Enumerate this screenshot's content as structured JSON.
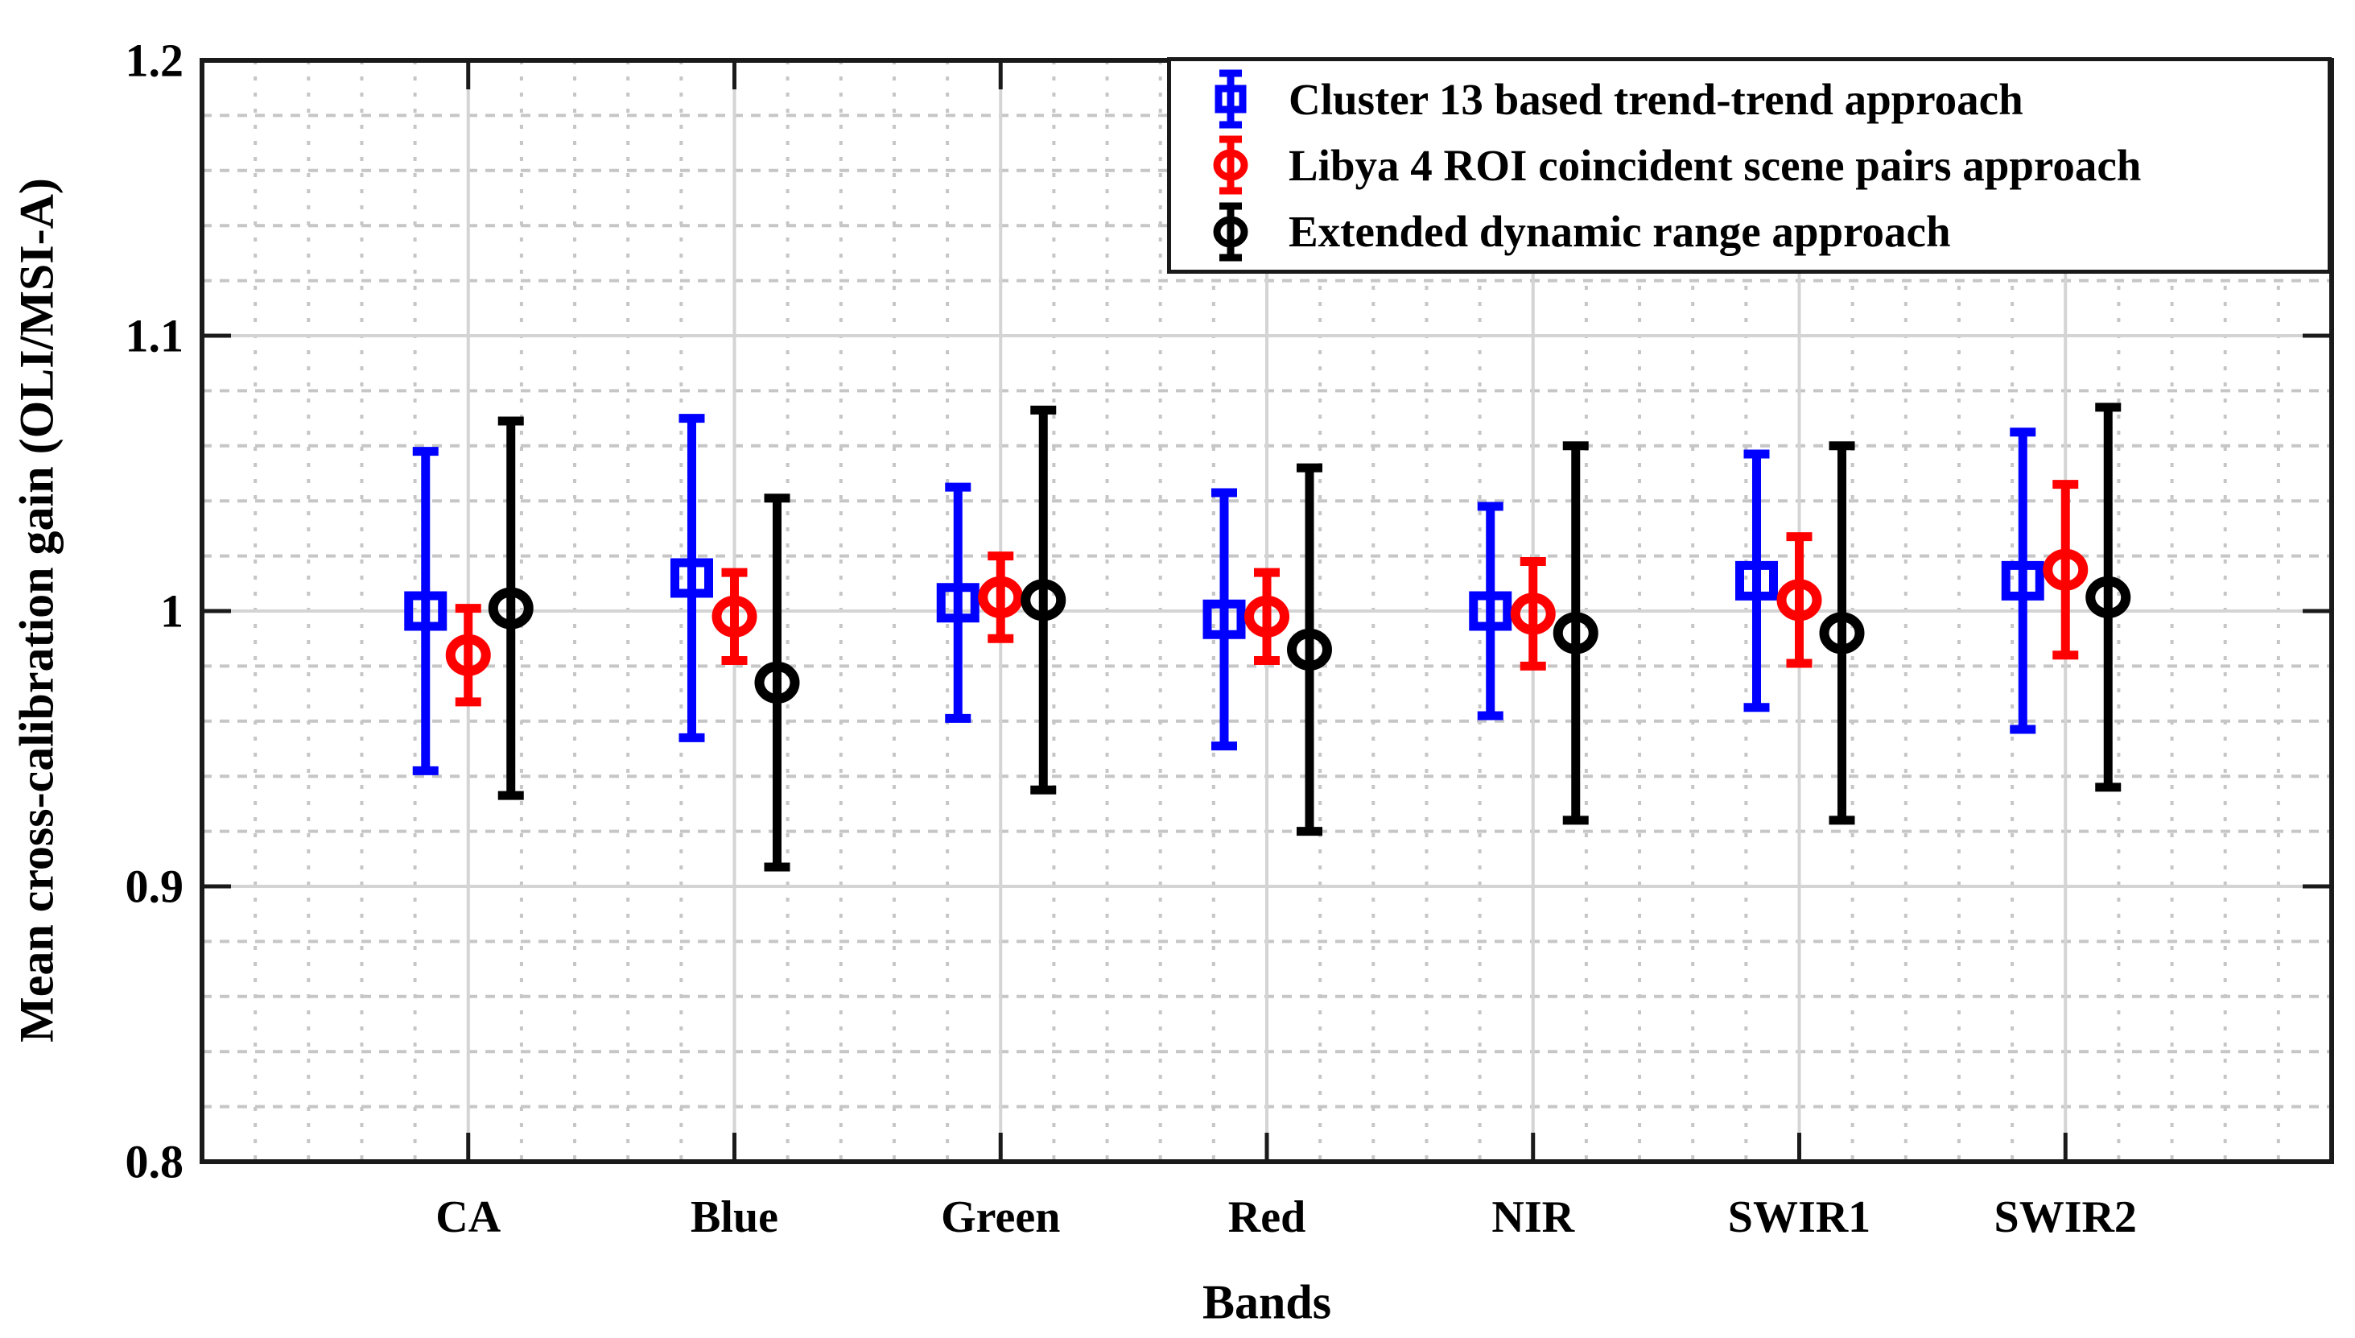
{
  "figure": {
    "ylabel": "Mean cross-calibration gain (OLI/MSI-A)",
    "xlabel": "Bands"
  },
  "legend": {
    "entries": [
      {
        "label": "Cluster 13 based trend-trend approach"
      },
      {
        "label": "Libya 4 ROI coincident scene pairs approach"
      },
      {
        "label": "Extended dynamic range approach"
      }
    ]
  },
  "chart_data": {
    "type": "scatter",
    "subtype": "errorbar",
    "title": "",
    "xlabel": "Bands",
    "ylabel": "Mean cross-calibration gain (OLI/MSI-A)",
    "categories": [
      "CA",
      "Blue",
      "Green",
      "Red",
      "NIR",
      "SWIR1",
      "SWIR2"
    ],
    "ylim": [
      0.8,
      1.2
    ],
    "yticks": [
      0.8,
      0.9,
      1.0,
      1.1,
      1.2
    ],
    "ytick_labels": [
      "0.8",
      "0.9",
      "1",
      "1.1",
      "1.2"
    ],
    "grid": {
      "major_y": [
        0.9,
        1.0,
        1.1
      ],
      "minor_y_step": 0.02,
      "x_minor_divisions_per_band": 5,
      "major_x_at_band_centers": true
    },
    "legend_position": "top-right",
    "series": [
      {
        "name": "Cluster 13 based trend-trend approach",
        "color": "#0000ff",
        "marker": "square",
        "values": [
          1.0,
          1.012,
          1.003,
          0.997,
          1.0,
          1.011,
          1.011
        ],
        "errors": [
          0.058,
          0.058,
          0.042,
          0.046,
          0.038,
          0.046,
          0.054
        ]
      },
      {
        "name": "Libya 4 ROI coincident scene pairs approach",
        "color": "#ff0000",
        "marker": "circle",
        "values": [
          0.984,
          0.998,
          1.005,
          0.998,
          0.999,
          1.004,
          1.015
        ],
        "errors": [
          0.017,
          0.016,
          0.015,
          0.016,
          0.019,
          0.023,
          0.031
        ]
      },
      {
        "name": "Extended dynamic range approach",
        "color": "#000000",
        "marker": "circle",
        "values": [
          1.001,
          0.974,
          1.004,
          0.986,
          0.992,
          0.992,
          1.005
        ],
        "errors": [
          0.068,
          0.067,
          0.069,
          0.066,
          0.068,
          0.068,
          0.069
        ]
      }
    ]
  }
}
